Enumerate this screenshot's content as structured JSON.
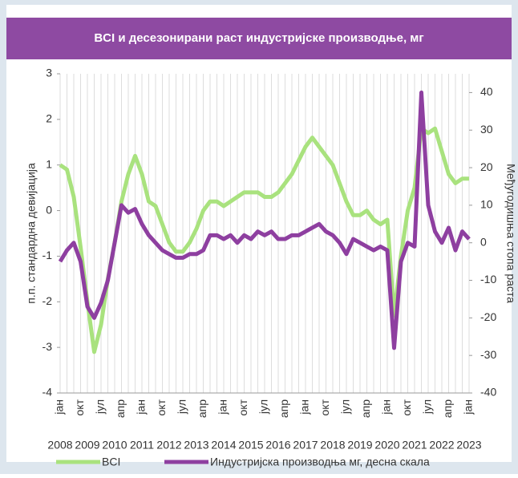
{
  "chart_data": {
    "type": "line",
    "title": "BCI и десезонирани раст индустријске производње, мг",
    "y_label": "п.п. стандардна девијација",
    "y2_label": "Међугодишња стопа раста",
    "categories": [
      "јан",
      null,
      null,
      "окт",
      null,
      null,
      "јул",
      null,
      null,
      "апр",
      null,
      null,
      "јан",
      null,
      null,
      "окт",
      null,
      null,
      "јул",
      null,
      null,
      "апр",
      null,
      null,
      "јан",
      null,
      null,
      "окт",
      null,
      null,
      "јул",
      null,
      null,
      "апр",
      null,
      null,
      "јан",
      null,
      null,
      "окт",
      null,
      null,
      "јул",
      null,
      null,
      "апр",
      null,
      null,
      "јан",
      null,
      null,
      "окт",
      null,
      null,
      "јул",
      null,
      null,
      "апр",
      null,
      null,
      "јан"
    ],
    "year_labels": [
      "2008",
      "2009",
      "2010",
      "2011",
      "2012",
      "2013",
      "2014",
      "2015",
      "2016",
      "2017",
      "2018",
      "2019",
      "2020",
      "2021",
      "2022",
      "2023"
    ],
    "series": [
      {
        "name": "BCI",
        "color": "#a9e27e",
        "values": [
          1.0,
          0.9,
          0.3,
          -0.8,
          -2.0,
          -3.1,
          -2.5,
          -1.5,
          -0.7,
          0.2,
          0.8,
          1.2,
          0.8,
          0.2,
          0.1,
          -0.3,
          -0.7,
          -0.9,
          -0.9,
          -0.7,
          -0.4,
          0.0,
          0.2,
          0.2,
          0.1,
          0.2,
          0.3,
          0.4,
          0.4,
          0.4,
          0.3,
          0.3,
          0.4,
          0.6,
          0.8,
          1.1,
          1.4,
          1.6,
          1.4,
          1.2,
          1.0,
          0.6,
          0.2,
          -0.1,
          -0.1,
          0.0,
          -0.2,
          -0.3,
          -0.2,
          -2.3,
          -1.0,
          0.0,
          0.5,
          1.8,
          1.7,
          1.8,
          1.3,
          0.8,
          0.6,
          0.7,
          0.7
        ]
      },
      {
        "name": "Индустријска производња мг, десна скала",
        "color": "#8e3fa0",
        "axis": "y2",
        "values": [
          -5,
          -2,
          0,
          -5,
          -17,
          -20,
          -16,
          -10,
          0,
          10,
          8,
          9,
          5,
          2,
          0,
          -2,
          -3,
          -4,
          -4,
          -3,
          -3,
          -2,
          2,
          2,
          1,
          2,
          0,
          2,
          1,
          3,
          2,
          3,
          1,
          1,
          2,
          2,
          3,
          4,
          5,
          3,
          2,
          0,
          -3,
          1,
          0,
          -1,
          -2,
          -1,
          -2,
          -28,
          -5,
          0,
          -1,
          40,
          10,
          3,
          0,
          4,
          -2,
          3,
          1
        ]
      }
    ],
    "ylim": [
      -4,
      3
    ],
    "yticks": [
      -4,
      -3,
      -2,
      -1,
      0,
      1,
      2,
      3
    ],
    "y2lim": [
      -40,
      45
    ],
    "y2ticks": [
      -40,
      -30,
      -20,
      -10,
      0,
      10,
      20,
      30,
      40
    ],
    "grid": "vertical"
  }
}
